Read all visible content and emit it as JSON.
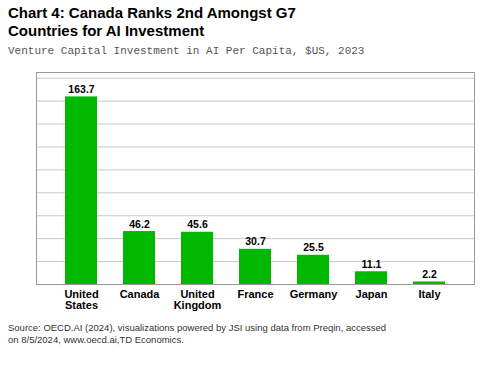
{
  "chart_data": {
    "type": "bar",
    "title": "Chart 4: Canada Ranks 2nd Amongst G7\nCountries for AI Investment",
    "subtitle": "Venture Capital Investment in AI Per Capita, $US, 2023",
    "caption": "Source: OECD.AI (2024), visualizations powered by JSI using data from Preqin, accessed\non 8/5/2024, www.oecd.ai,TD Economics.",
    "categories": [
      "United\nStates",
      "Canada",
      "United\nKingdom",
      "France",
      "Germany",
      "Japan",
      "Italy"
    ],
    "values": [
      163.7,
      46.2,
      45.6,
      30.7,
      25.5,
      11.1,
      2.2
    ],
    "color": "#00b800",
    "ylim": [
      0,
      185
    ],
    "yticks": [
      0,
      20,
      40,
      60,
      80,
      100,
      120,
      140,
      160,
      180
    ],
    "grid": true,
    "data_labels": true,
    "tick_labels": "x"
  }
}
